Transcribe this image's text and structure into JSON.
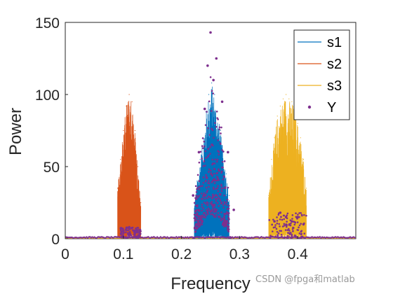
{
  "chart_data": {
    "type": "line",
    "xlabel": "Frequency",
    "ylabel": "Power",
    "xlim": [
      0,
      0.5
    ],
    "ylim": [
      0,
      150
    ],
    "xticks": [
      0,
      0.1,
      0.2,
      0.3,
      0.4
    ],
    "xtick_labels": [
      "0",
      "0.1",
      "0.2",
      "0.3",
      "0.4"
    ],
    "yticks": [
      0,
      50,
      100,
      150
    ],
    "ytick_labels": [
      "0",
      "50",
      "100",
      "150"
    ],
    "grid": false,
    "legend_position": "top-right",
    "series": [
      {
        "name": "s1",
        "style": "line",
        "color": "#0072BD",
        "x": [
          0.222,
          0.227,
          0.232,
          0.237,
          0.242,
          0.247,
          0.252,
          0.257,
          0.262,
          0.267,
          0.272,
          0.277,
          0.282
        ],
        "values": [
          25,
          40,
          55,
          70,
          88,
          100,
          108,
          100,
          88,
          75,
          60,
          45,
          30
        ],
        "baseline": 0
      },
      {
        "name": "s2",
        "style": "line",
        "color": "#D95319",
        "x": [
          0.09,
          0.095,
          0.1,
          0.105,
          0.11,
          0.115,
          0.12,
          0.125,
          0.13
        ],
        "values": [
          35,
          55,
          75,
          92,
          100,
          95,
          75,
          50,
          25
        ],
        "baseline": 0
      },
      {
        "name": "s3",
        "style": "line",
        "color": "#EDB120",
        "x": [
          0.35,
          0.355,
          0.36,
          0.365,
          0.37,
          0.375,
          0.38,
          0.385,
          0.39,
          0.395,
          0.4,
          0.405,
          0.41,
          0.415
        ],
        "values": [
          30,
          55,
          70,
          85,
          92,
          97,
          100,
          97,
          95,
          92,
          80,
          70,
          55,
          35
        ],
        "baseline": 0
      },
      {
        "name": "Y",
        "style": "scatter",
        "color": "#7E2F8E",
        "x": [
          0.22,
          0.23,
          0.24,
          0.245,
          0.25,
          0.255,
          0.26,
          0.27,
          0.28,
          0.29,
          0.1,
          0.11,
          0.12,
          0.36,
          0.37,
          0.38,
          0.39,
          0.4,
          0.41
        ],
        "values": [
          30,
          60,
          90,
          120,
          143,
          110,
          125,
          95,
          60,
          20,
          5,
          8,
          4,
          12,
          18,
          15,
          12,
          15,
          10
        ]
      }
    ]
  },
  "watermark": "CSDN @fpga和matlab"
}
